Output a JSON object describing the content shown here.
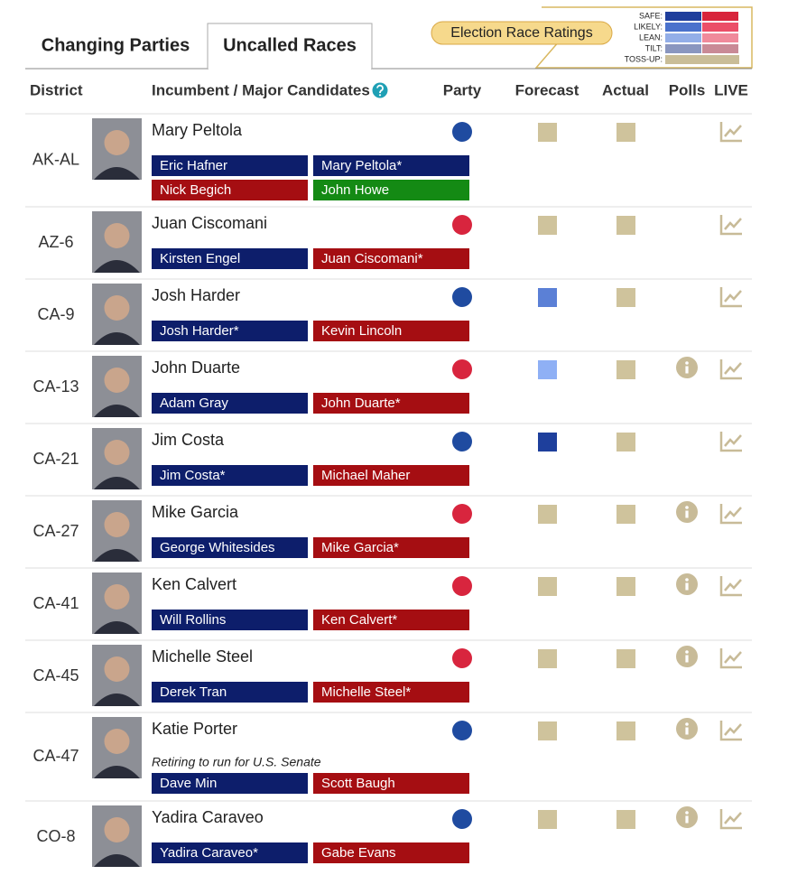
{
  "tabs": [
    {
      "label": "Changing Parties",
      "active": false
    },
    {
      "label": "Uncalled Races",
      "active": true
    }
  ],
  "legend": {
    "title": "Election Race Ratings",
    "ratings": [
      {
        "label": "SAFE:",
        "colors": [
          "#1f3e9c",
          "#d8243b"
        ]
      },
      {
        "label": "LIKELY:",
        "colors": [
          "#4b72cc",
          "#eb4f68"
        ]
      },
      {
        "label": "LEAN:",
        "colors": [
          "#93aee8",
          "#f08a9b"
        ]
      },
      {
        "label": "TILT:",
        "colors": [
          "#8a96bf",
          "#c98a96"
        ]
      },
      {
        "label": "TOSS-UP:",
        "colors": [
          "#c9bd98"
        ]
      }
    ]
  },
  "columns": [
    "District",
    "Incumbent / Major Candidates",
    "Party",
    "Forecast",
    "Actual",
    "Polls",
    "LIVE"
  ],
  "rows": [
    {
      "district": "AK-AL",
      "incumbent": "Mary Peltola",
      "party_color": "#1f4ba0",
      "forecast_color": "#cfc39c",
      "actual_color": "#cfc39c",
      "polls": false,
      "candidates": [
        {
          "name": "Eric Hafner",
          "color": "#0d1e6b"
        },
        {
          "name": "Mary Peltola*",
          "color": "#0d1e6b"
        },
        {
          "name": "Nick Begich",
          "color": "#a50e12"
        },
        {
          "name": "John Howe",
          "color": "#148a14"
        }
      ]
    },
    {
      "district": "AZ-6",
      "incumbent": "Juan Ciscomani",
      "party_color": "#d8253e",
      "forecast_color": "#cfc39c",
      "actual_color": "#cfc39c",
      "polls": false,
      "candidates": [
        {
          "name": "Kirsten Engel",
          "color": "#0d1e6b"
        },
        {
          "name": "Juan Ciscomani*",
          "color": "#a50e12"
        }
      ]
    },
    {
      "district": "CA-9",
      "incumbent": "Josh Harder",
      "party_color": "#1f4ba0",
      "forecast_color": "#5b80d6",
      "actual_color": "#cfc39c",
      "polls": false,
      "candidates": [
        {
          "name": "Josh Harder*",
          "color": "#0d1e6b"
        },
        {
          "name": "Kevin Lincoln",
          "color": "#a50e12"
        }
      ]
    },
    {
      "district": "CA-13",
      "incumbent": "John Duarte",
      "party_color": "#d8253e",
      "forecast_color": "#8fb0f5",
      "actual_color": "#cfc39c",
      "polls": true,
      "candidates": [
        {
          "name": "Adam Gray",
          "color": "#0d1e6b"
        },
        {
          "name": "John Duarte*",
          "color": "#a50e12"
        }
      ]
    },
    {
      "district": "CA-21",
      "incumbent": "Jim Costa",
      "party_color": "#1f4ba0",
      "forecast_color": "#1e3f9c",
      "actual_color": "#cfc39c",
      "polls": false,
      "candidates": [
        {
          "name": "Jim Costa*",
          "color": "#0d1e6b"
        },
        {
          "name": "Michael Maher",
          "color": "#a50e12"
        }
      ]
    },
    {
      "district": "CA-27",
      "incumbent": "Mike Garcia",
      "party_color": "#d8253e",
      "forecast_color": "#cfc39c",
      "actual_color": "#cfc39c",
      "polls": true,
      "candidates": [
        {
          "name": "George Whitesides",
          "color": "#0d1e6b"
        },
        {
          "name": "Mike Garcia*",
          "color": "#a50e12"
        }
      ]
    },
    {
      "district": "CA-41",
      "incumbent": "Ken Calvert",
      "party_color": "#d8253e",
      "forecast_color": "#cfc39c",
      "actual_color": "#cfc39c",
      "polls": true,
      "candidates": [
        {
          "name": "Will Rollins",
          "color": "#0d1e6b"
        },
        {
          "name": "Ken Calvert*",
          "color": "#a50e12"
        }
      ]
    },
    {
      "district": "CA-45",
      "incumbent": "Michelle Steel",
      "party_color": "#d8253e",
      "forecast_color": "#cfc39c",
      "actual_color": "#cfc39c",
      "polls": true,
      "candidates": [
        {
          "name": "Derek Tran",
          "color": "#0d1e6b"
        },
        {
          "name": "Michelle Steel*",
          "color": "#a50e12"
        }
      ]
    },
    {
      "district": "CA-47",
      "incumbent": "Katie Porter",
      "note": "Retiring to run for U.S. Senate",
      "party_color": "#1f4ba0",
      "forecast_color": "#cfc39c",
      "actual_color": "#cfc39c",
      "polls": true,
      "candidates": [
        {
          "name": "Dave Min",
          "color": "#0d1e6b"
        },
        {
          "name": "Scott Baugh",
          "color": "#a50e12"
        }
      ]
    },
    {
      "district": "CO-8",
      "incumbent": "Yadira Caraveo",
      "party_color": "#1f4ba0",
      "forecast_color": "#cfc39c",
      "actual_color": "#cfc39c",
      "polls": true,
      "candidates": [
        {
          "name": "Yadira Caraveo*",
          "color": "#0d1e6b"
        },
        {
          "name": "Gabe Evans",
          "color": "#a50e12"
        }
      ]
    }
  ]
}
